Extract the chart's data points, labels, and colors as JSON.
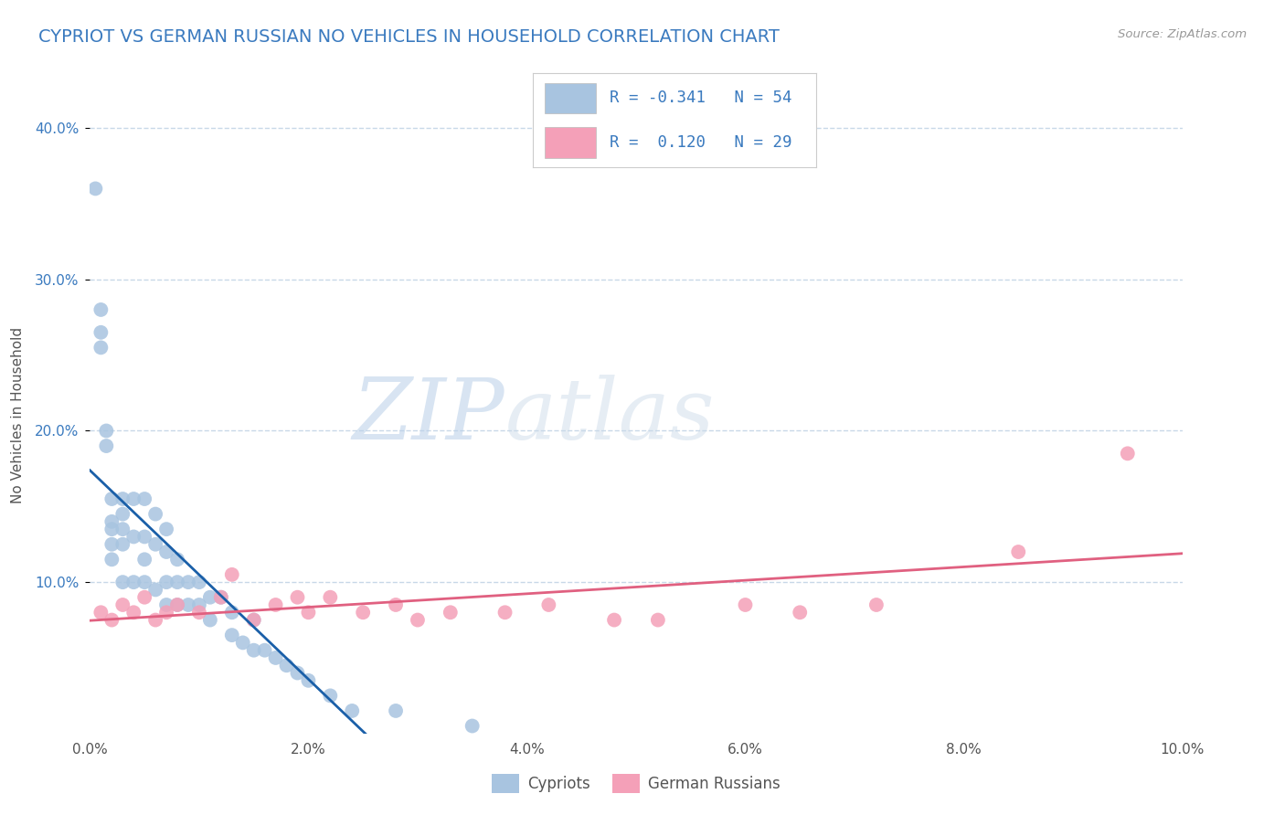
{
  "title": "CYPRIOT VS GERMAN RUSSIAN NO VEHICLES IN HOUSEHOLD CORRELATION CHART",
  "source": "Source: ZipAtlas.com",
  "ylabel": "No Vehicles in Household",
  "xlim": [
    0.0,
    0.1
  ],
  "ylim": [
    0.0,
    0.42
  ],
  "xtick_labels": [
    "0.0%",
    "2.0%",
    "4.0%",
    "6.0%",
    "8.0%",
    "10.0%"
  ],
  "xtick_vals": [
    0.0,
    0.02,
    0.04,
    0.06,
    0.08,
    0.1
  ],
  "ytick_labels": [
    "10.0%",
    "20.0%",
    "30.0%",
    "40.0%"
  ],
  "ytick_vals": [
    0.1,
    0.2,
    0.3,
    0.4
  ],
  "watermark_zip": "ZIP",
  "watermark_atlas": "atlas",
  "legend_label1": "Cypriots",
  "legend_label2": "German Russians",
  "r1": -0.341,
  "n1": 54,
  "r2": 0.12,
  "n2": 29,
  "color1": "#a8c4e0",
  "color2": "#f4a0b8",
  "line_color1": "#1a5fa8",
  "line_color2": "#e06080",
  "title_color": "#3a7abf",
  "stats_color": "#3a7abf",
  "background_color": "#ffffff",
  "grid_color": "#c8d8e8",
  "cypriot_x": [
    0.0005,
    0.001,
    0.001,
    0.001,
    0.0015,
    0.0015,
    0.002,
    0.002,
    0.002,
    0.002,
    0.002,
    0.003,
    0.003,
    0.003,
    0.003,
    0.003,
    0.004,
    0.004,
    0.004,
    0.005,
    0.005,
    0.005,
    0.005,
    0.006,
    0.006,
    0.006,
    0.007,
    0.007,
    0.007,
    0.007,
    0.008,
    0.008,
    0.008,
    0.009,
    0.009,
    0.01,
    0.01,
    0.011,
    0.011,
    0.012,
    0.013,
    0.013,
    0.014,
    0.015,
    0.015,
    0.016,
    0.017,
    0.018,
    0.019,
    0.02,
    0.022,
    0.024,
    0.028,
    0.035
  ],
  "cypriot_y": [
    0.36,
    0.28,
    0.265,
    0.255,
    0.2,
    0.19,
    0.155,
    0.14,
    0.135,
    0.125,
    0.115,
    0.155,
    0.145,
    0.135,
    0.125,
    0.1,
    0.155,
    0.13,
    0.1,
    0.155,
    0.13,
    0.115,
    0.1,
    0.145,
    0.125,
    0.095,
    0.135,
    0.12,
    0.1,
    0.085,
    0.115,
    0.1,
    0.085,
    0.1,
    0.085,
    0.1,
    0.085,
    0.09,
    0.075,
    0.09,
    0.08,
    0.065,
    0.06,
    0.075,
    0.055,
    0.055,
    0.05,
    0.045,
    0.04,
    0.035,
    0.025,
    0.015,
    0.015,
    0.005
  ],
  "german_russian_x": [
    0.001,
    0.002,
    0.003,
    0.004,
    0.005,
    0.006,
    0.007,
    0.008,
    0.01,
    0.012,
    0.013,
    0.015,
    0.017,
    0.019,
    0.02,
    0.022,
    0.025,
    0.028,
    0.03,
    0.033,
    0.038,
    0.042,
    0.048,
    0.052,
    0.06,
    0.065,
    0.072,
    0.085,
    0.095
  ],
  "german_russian_y": [
    0.08,
    0.075,
    0.085,
    0.08,
    0.09,
    0.075,
    0.08,
    0.085,
    0.08,
    0.09,
    0.105,
    0.075,
    0.085,
    0.09,
    0.08,
    0.09,
    0.08,
    0.085,
    0.075,
    0.08,
    0.08,
    0.085,
    0.075,
    0.075,
    0.085,
    0.08,
    0.085,
    0.12,
    0.185
  ]
}
